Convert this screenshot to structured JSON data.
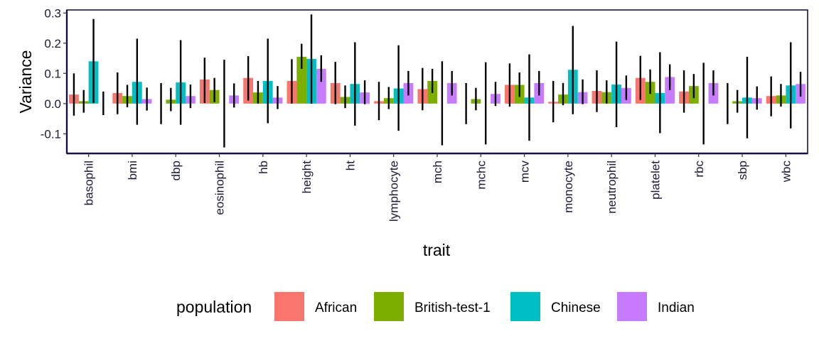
{
  "chart_data": {
    "type": "bar",
    "ylabel": "Variance",
    "xlabel": "trait",
    "ylim": [
      -0.165,
      0.31
    ],
    "yticks": [
      -0.1,
      0.0,
      0.1,
      0.2,
      0.3
    ],
    "ytick_labels": [
      "-0.1",
      "0.0",
      "0.1",
      "0.2",
      "0.3"
    ],
    "grid": false,
    "legend": {
      "title": "population",
      "placement": "bottom"
    },
    "categories": [
      "basophil",
      "bmi",
      "dbp",
      "eosinophil",
      "hb",
      "height",
      "ht",
      "lymphocyte",
      "mch",
      "mchc",
      "mcv",
      "monocyte",
      "neutrophil",
      "platelet",
      "rbc",
      "sbp",
      "wbc"
    ],
    "series": [
      {
        "name": "African",
        "color": "#F8766D",
        "values": [
          0.03,
          0.035,
          0.0,
          0.08,
          0.085,
          0.075,
          0.068,
          0.008,
          0.048,
          0.0,
          0.062,
          0.006,
          0.042,
          0.085,
          0.04,
          0.0,
          0.025
        ],
        "lower": [
          -0.04,
          -0.035,
          -0.068,
          0.002,
          0.01,
          0.0,
          -0.002,
          -0.055,
          -0.022,
          -0.068,
          -0.01,
          -0.062,
          -0.028,
          0.012,
          -0.03,
          -0.068,
          -0.042
        ],
        "upper": [
          0.1,
          0.103,
          0.068,
          0.152,
          0.157,
          0.147,
          0.138,
          0.072,
          0.118,
          0.068,
          0.133,
          0.075,
          0.11,
          0.158,
          0.11,
          0.068,
          0.09
        ]
      },
      {
        "name": "British-test-1",
        "color": "#7CAE00",
        "values": [
          0.008,
          0.025,
          0.013,
          0.045,
          0.037,
          0.155,
          0.022,
          0.018,
          0.075,
          0.015,
          0.062,
          0.03,
          0.038,
          0.072,
          0.058,
          0.008,
          0.027
        ],
        "lower": [
          -0.03,
          -0.012,
          -0.025,
          0.005,
          0.0,
          0.115,
          -0.015,
          -0.018,
          0.035,
          -0.022,
          0.022,
          -0.005,
          0.0,
          0.032,
          0.018,
          -0.03,
          -0.01
        ],
        "upper": [
          0.045,
          0.062,
          0.052,
          0.085,
          0.075,
          0.198,
          0.06,
          0.055,
          0.115,
          0.052,
          0.103,
          0.068,
          0.077,
          0.113,
          0.098,
          0.045,
          0.065
        ]
      },
      {
        "name": "Chinese",
        "color": "#00BFC4",
        "values": [
          0.14,
          0.072,
          0.07,
          0.0,
          0.075,
          0.148,
          0.065,
          0.05,
          0.0,
          0.0,
          0.02,
          0.112,
          0.063,
          0.035,
          0.0,
          0.02,
          0.06
        ],
        "lower": [
          0.002,
          -0.07,
          -0.07,
          -0.145,
          -0.065,
          0.0,
          -0.073,
          -0.09,
          -0.138,
          -0.135,
          -0.123,
          -0.035,
          -0.078,
          -0.098,
          -0.135,
          -0.115,
          -0.082
        ],
        "upper": [
          0.28,
          0.215,
          0.21,
          0.145,
          0.215,
          0.295,
          0.203,
          0.193,
          0.14,
          0.137,
          0.163,
          0.257,
          0.205,
          0.17,
          0.135,
          0.155,
          0.203
        ]
      },
      {
        "name": "Indian",
        "color": "#C77CFF",
        "values": [
          0.0,
          0.015,
          0.025,
          0.027,
          0.02,
          0.115,
          0.037,
          0.068,
          0.068,
          0.032,
          0.068,
          0.038,
          0.052,
          0.088,
          0.068,
          0.018,
          0.065
        ],
        "lower": [
          -0.038,
          -0.023,
          -0.015,
          -0.013,
          -0.018,
          0.072,
          -0.002,
          0.027,
          0.027,
          -0.008,
          0.027,
          -0.002,
          0.012,
          0.045,
          0.027,
          -0.02,
          0.023
        ],
        "upper": [
          0.04,
          0.053,
          0.063,
          0.067,
          0.058,
          0.16,
          0.077,
          0.108,
          0.108,
          0.072,
          0.108,
          0.08,
          0.093,
          0.13,
          0.11,
          0.057,
          0.105
        ]
      }
    ]
  }
}
